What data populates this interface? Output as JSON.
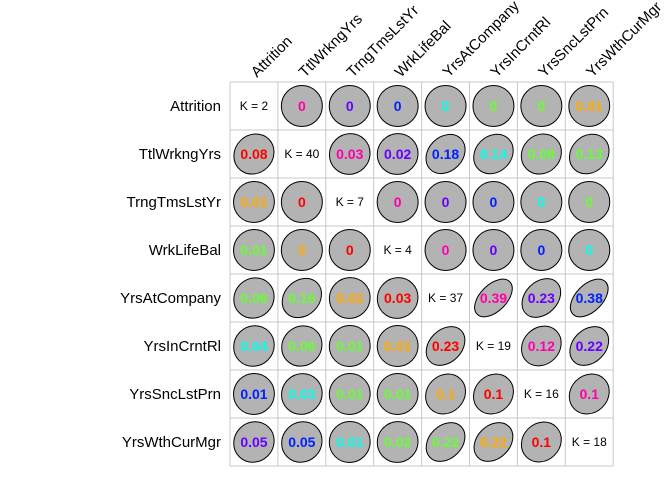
{
  "chart_data": {
    "type": "heatmap",
    "variables": [
      "Attrition",
      "TtlWrkngYrs",
      "TrngTmsLstYr",
      "WrkLifeBal",
      "YrsAtCompany",
      "YrsInCrntRl",
      "YrsSncLstPrn",
      "YrsWthCurMgr"
    ],
    "diagonal_labels": [
      "K = 2",
      "K = 40",
      "K = 7",
      "K = 4",
      "K = 37",
      "K = 19",
      "K = 16",
      "K = 18"
    ],
    "cells": [
      [
        null,
        0,
        0,
        0,
        0,
        0,
        0,
        0.01
      ],
      [
        0.08,
        null,
        0.03,
        0.02,
        0.18,
        0.14,
        0.08,
        0.13
      ],
      [
        0.01,
        0,
        null,
        0,
        0,
        0,
        0,
        0
      ],
      [
        0.01,
        0,
        0,
        null,
        0,
        0,
        0,
        0
      ],
      [
        0.06,
        0.16,
        0.02,
        0.03,
        null,
        0.39,
        0.23,
        0.38
      ],
      [
        0.04,
        0.06,
        0.01,
        0.01,
        0.23,
        null,
        0.12,
        0.22
      ],
      [
        0.01,
        0.03,
        0.01,
        0.01,
        0.1,
        0.1,
        null,
        0.1
      ],
      [
        0.05,
        0.05,
        0.01,
        0.02,
        0.22,
        0.22,
        0.1,
        null
      ]
    ],
    "text_colors": [
      [
        null,
        "#ff00aa",
        "#6600ff",
        "#0022ff",
        "#00ffee",
        "#66ff33",
        "#66ff33",
        "#ffaa00"
      ],
      [
        "#ff0000",
        null,
        "#ff00aa",
        "#6600ff",
        "#0022ff",
        "#00ffee",
        "#66ff33",
        "#66ff33"
      ],
      [
        "#ffaa00",
        "#ff0000",
        null,
        "#ff00aa",
        "#6600ff",
        "#0022ff",
        "#00ffee",
        "#66ff33"
      ],
      [
        "#66ff33",
        "#ffaa00",
        "#ff0000",
        null,
        "#ff00aa",
        "#6600ff",
        "#0022ff",
        "#00ffee"
      ],
      [
        "#66ff33",
        "#66ff33",
        "#ffaa00",
        "#ff0000",
        null,
        "#ff00aa",
        "#6600ff",
        "#0022ff"
      ],
      [
        "#00ffee",
        "#66ff33",
        "#66ff33",
        "#ffaa00",
        "#ff0000",
        null,
        "#ff00aa",
        "#6600ff"
      ],
      [
        "#0022ff",
        "#00ffee",
        "#66ff33",
        "#66ff33",
        "#ffaa00",
        "#ff0000",
        null,
        "#ff00aa"
      ],
      [
        "#6600ff",
        "#0022ff",
        "#00ffee",
        "#66ff33",
        "#66ff33",
        "#ffaa00",
        "#ff0000",
        null
      ]
    ],
    "ellipse_fill": "#b3b3b3",
    "grid": true
  }
}
